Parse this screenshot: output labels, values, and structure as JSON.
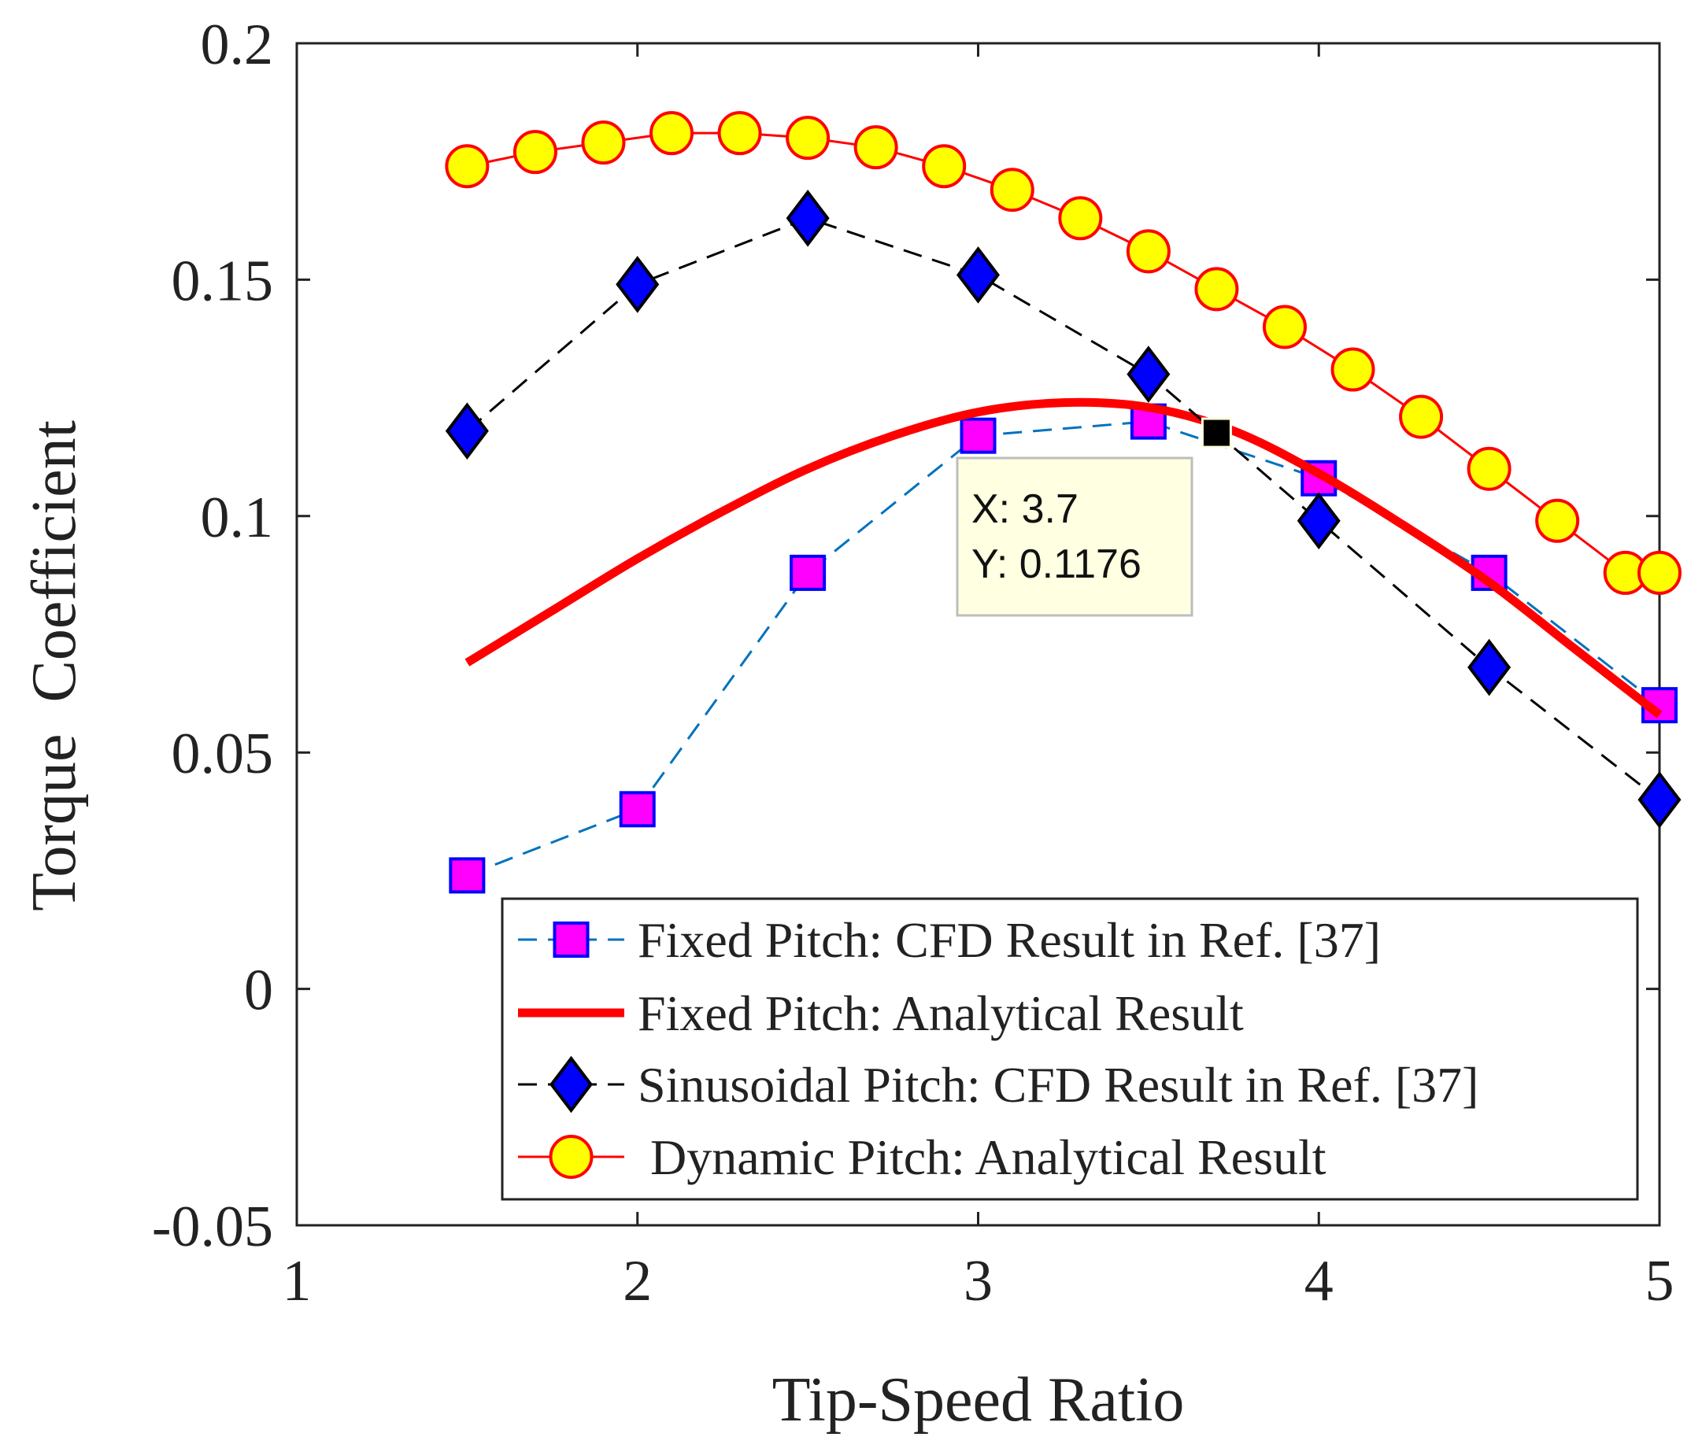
{
  "chart_data": {
    "type": "line",
    "title": "",
    "xlabel": "Tip-Speed Ratio",
    "ylabel": "Torque  Coefficient",
    "xlim": [
      1,
      5
    ],
    "ylim": [
      -0.05,
      0.2
    ],
    "xticks": [
      "1",
      "2",
      "3",
      "4",
      "5"
    ],
    "yticks": [
      "-0.05",
      "0",
      "0.05",
      "0.1",
      "0.15",
      "0.2"
    ],
    "grid": false,
    "legend_position": "bottom-right",
    "series": [
      {
        "name": "Fixed Pitch: CFD Result in Ref. [37]",
        "style": "dashed",
        "marker": "square",
        "line_color": "#0072BD",
        "marker_fill": "#FF00FF",
        "marker_edge": "#0000FF",
        "x": [
          1.5,
          2.0,
          2.5,
          3.0,
          3.5,
          4.0,
          4.5,
          5.0
        ],
        "y": [
          0.024,
          0.038,
          0.088,
          0.117,
          0.12,
          0.108,
          0.088,
          0.06
        ]
      },
      {
        "name": "Fixed Pitch: Analytical Result",
        "style": "solid",
        "marker": "none",
        "line_color": "#FF0000",
        "x": [
          1.5,
          1.75,
          2.0,
          2.25,
          2.5,
          2.75,
          3.0,
          3.25,
          3.5,
          3.75,
          4.0,
          4.25,
          4.5,
          4.75,
          5.0
        ],
        "y": [
          0.069,
          0.08,
          0.091,
          0.101,
          0.11,
          0.117,
          0.122,
          0.124,
          0.123,
          0.118,
          0.109,
          0.098,
          0.086,
          0.072,
          0.058
        ]
      },
      {
        "name": "Sinusoidal Pitch: CFD Result in Ref. [37]",
        "style": "dashed",
        "marker": "diamond",
        "line_color": "#000000",
        "marker_fill": "#0000FF",
        "marker_edge": "#000000",
        "x": [
          1.5,
          2.0,
          2.5,
          3.0,
          3.5,
          4.0,
          4.5,
          5.0
        ],
        "y": [
          0.118,
          0.149,
          0.163,
          0.151,
          0.13,
          0.099,
          0.068,
          0.04
        ]
      },
      {
        "name": " Dynamic Pitch: Analytical Result",
        "style": "solid",
        "marker": "circle",
        "line_color": "#FF0000",
        "marker_fill": "#FFFF00",
        "marker_edge": "#FF0000",
        "x": [
          1.5,
          1.7,
          1.9,
          2.1,
          2.3,
          2.5,
          2.7,
          2.9,
          3.1,
          3.3,
          3.5,
          3.7,
          3.9,
          4.1,
          4.3,
          4.5,
          4.7,
          4.9,
          5.0
        ],
        "y": [
          0.174,
          0.177,
          0.179,
          0.181,
          0.181,
          0.18,
          0.178,
          0.174,
          0.169,
          0.163,
          0.156,
          0.148,
          0.14,
          0.131,
          0.121,
          0.11,
          0.099,
          0.088,
          0.088
        ]
      }
    ],
    "annotations": [
      {
        "type": "datatip",
        "x": 3.7,
        "y": 0.1176,
        "x_text": "X: 3.7",
        "y_text": "Y: 0.1176"
      }
    ]
  },
  "colors": {
    "axis": "#222222",
    "tooltip_bg": "#FFFFE1",
    "tooltip_border": "#BDBDBD",
    "datatip_marker": "#000000"
  }
}
